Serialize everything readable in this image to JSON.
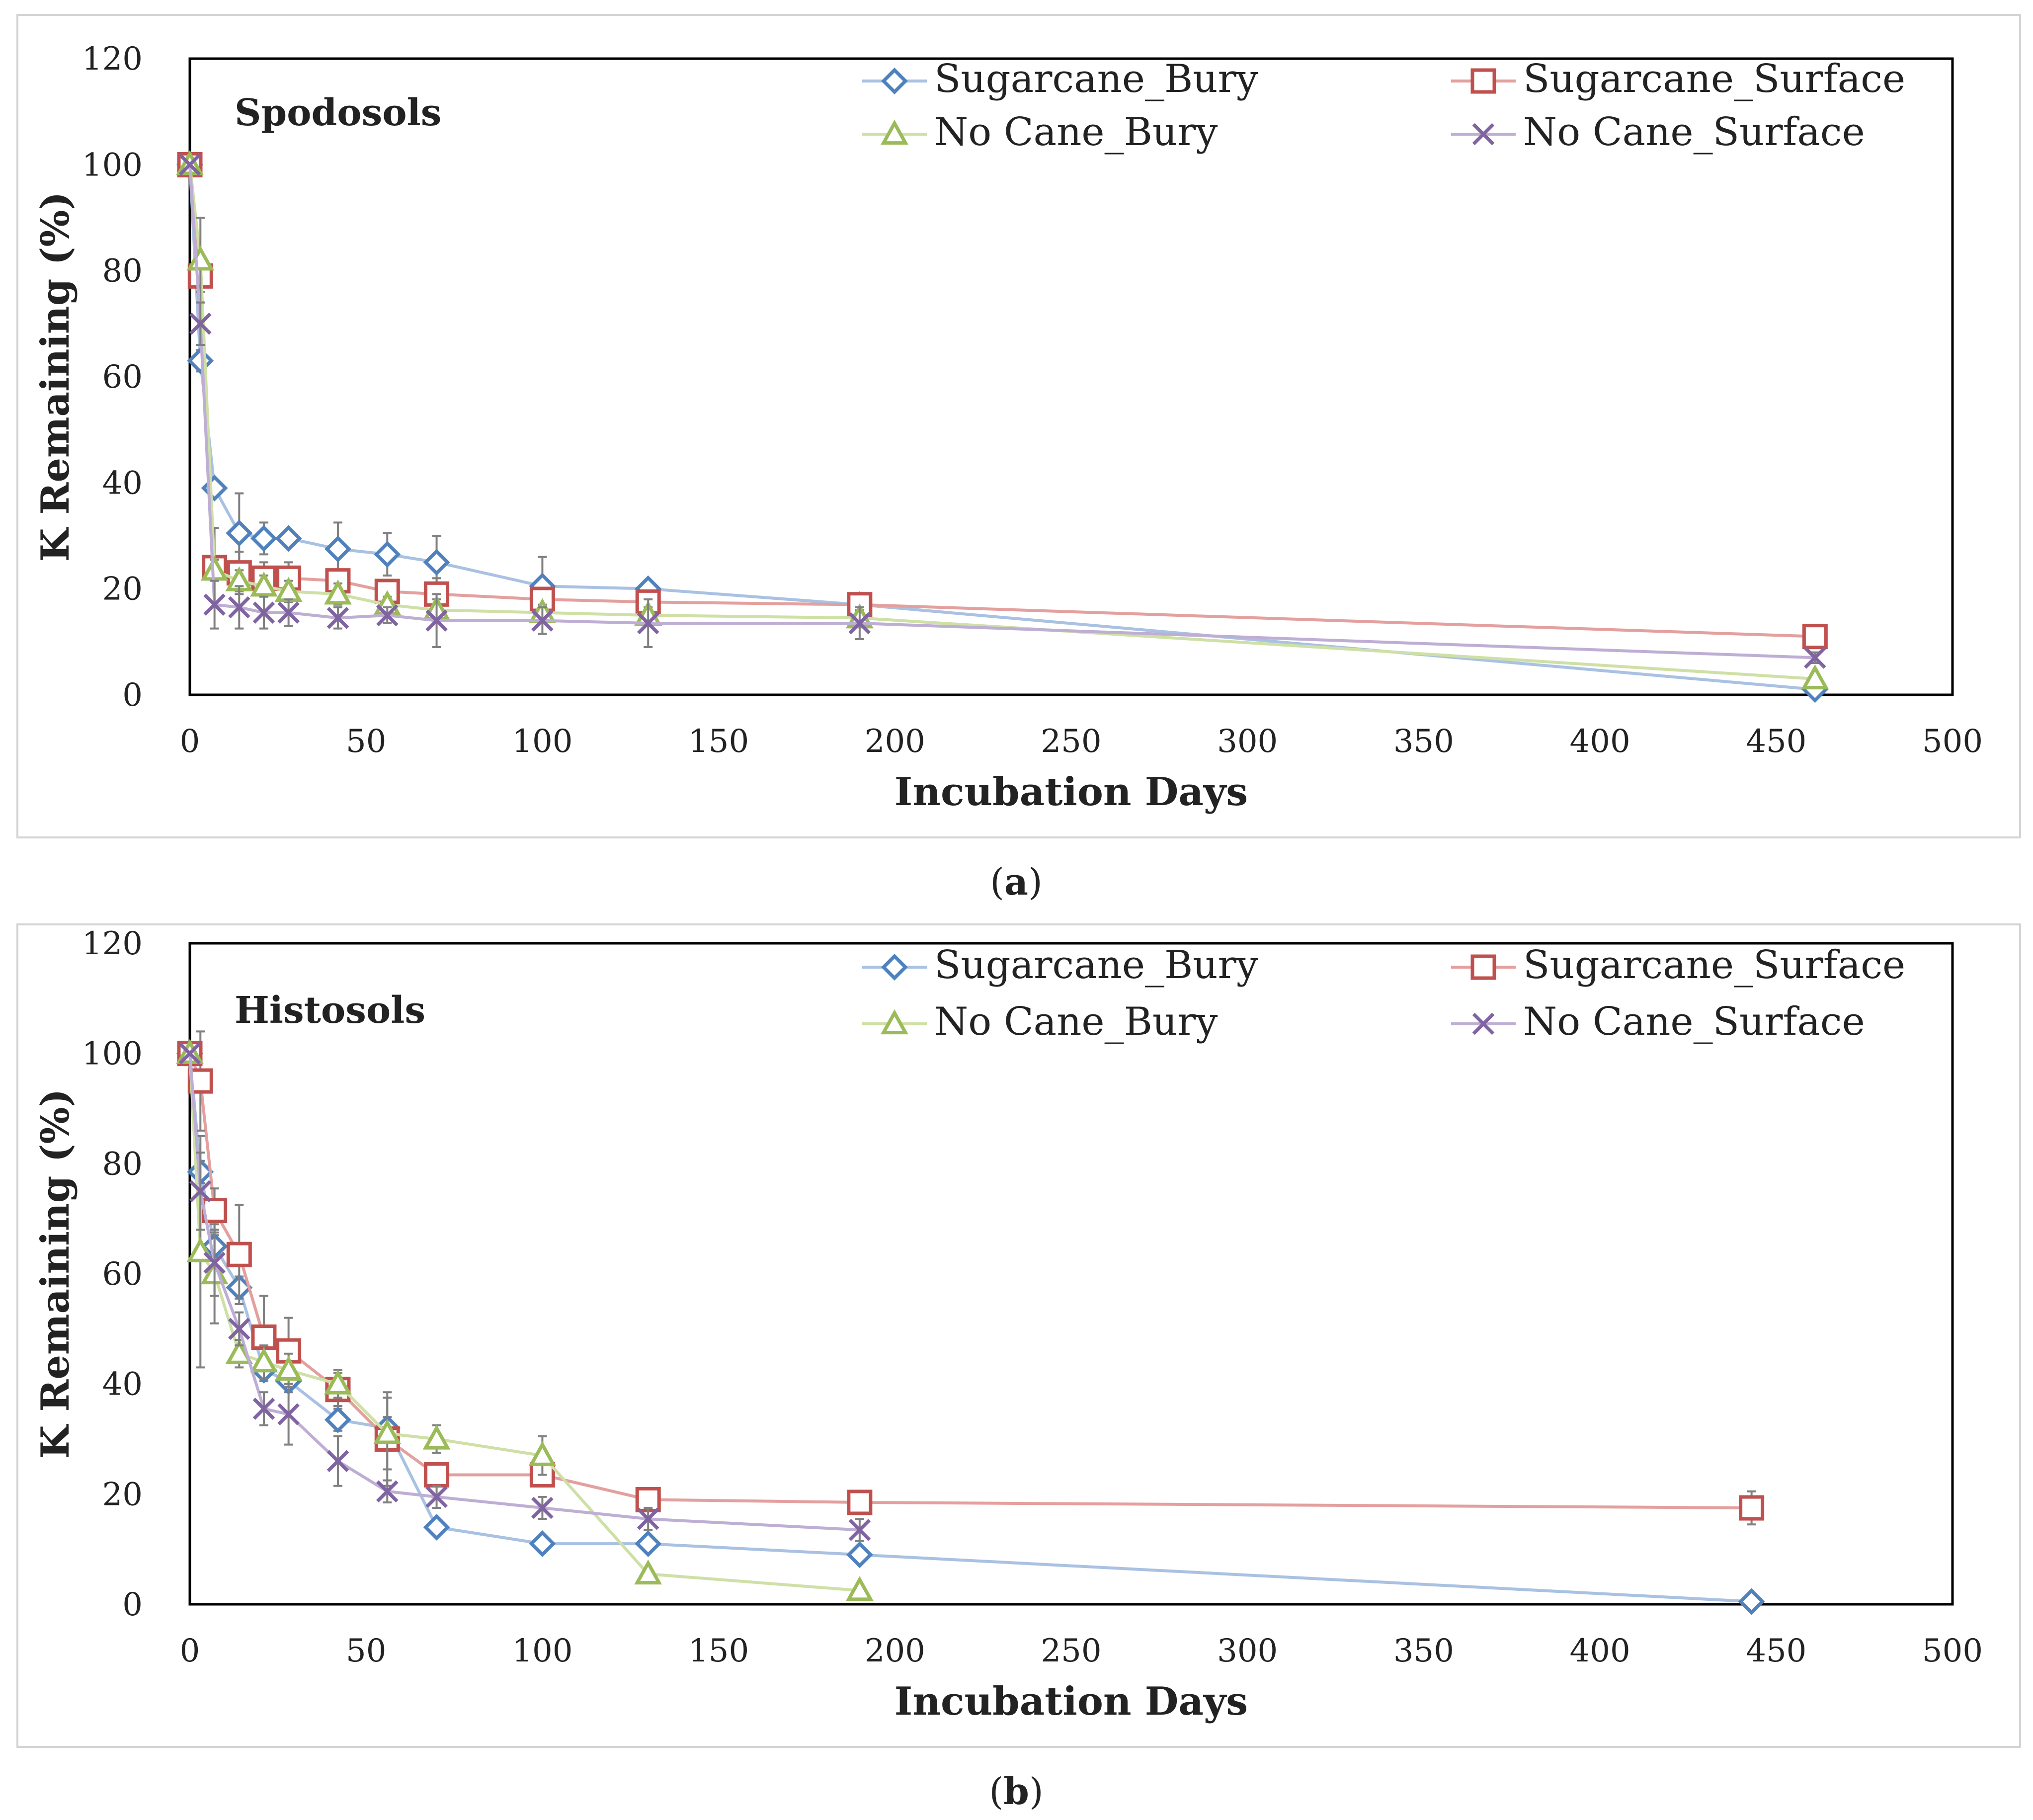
{
  "chart_data": [
    {
      "type": "line",
      "panel_label": "a",
      "title": "Spodosols",
      "xlabel": "Incubation Days",
      "ylabel": "K Remaining (%)",
      "xlim": [
        0,
        500
      ],
      "ylim": [
        0,
        120
      ],
      "xticks": [
        0,
        50,
        100,
        150,
        200,
        250,
        300,
        350,
        400,
        450,
        500
      ],
      "yticks": [
        0,
        20,
        40,
        60,
        80,
        100,
        120
      ],
      "grid": false,
      "legend_position": "top-right",
      "series": [
        {
          "name": "Sugarcane_Bury",
          "color": "#4f81bd",
          "line_color": "#a9c1e2",
          "marker": "diamond",
          "x": [
            0,
            3,
            7,
            14,
            21,
            28,
            42,
            56,
            70,
            100,
            130,
            190,
            461
          ],
          "y": [
            100,
            63,
            39,
            30.5,
            29.5,
            29.5,
            27.5,
            26.5,
            25,
            20.5,
            20,
            17,
            1
          ],
          "err": [
            0,
            2,
            0,
            7.5,
            3,
            0,
            5,
            4,
            5,
            5.5,
            0,
            0,
            0
          ]
        },
        {
          "name": "Sugarcane_Surface",
          "color": "#c0504d",
          "line_color": "#e3a09e",
          "marker": "square",
          "x": [
            0,
            3,
            7,
            14,
            21,
            28,
            42,
            56,
            70,
            100,
            130,
            190,
            461
          ],
          "y": [
            100,
            79,
            24,
            23,
            22,
            22,
            21.5,
            19.5,
            19,
            18,
            17.5,
            17,
            11
          ],
          "err": [
            0,
            3,
            7.5,
            4,
            3,
            3,
            2,
            1.5,
            3,
            1.5,
            1,
            0.5,
            0.5
          ]
        },
        {
          "name": "No Cane_Bury",
          "color": "#9bbb59",
          "line_color": "#cfe0a6",
          "marker": "triangle",
          "x": [
            0,
            3,
            7,
            14,
            21,
            28,
            42,
            56,
            70,
            100,
            130,
            190,
            461
          ],
          "y": [
            100,
            82,
            23.5,
            21.5,
            20.5,
            19.5,
            19,
            17,
            16,
            15.5,
            15,
            14.5,
            3
          ],
          "err": [
            0,
            8,
            2,
            2,
            2,
            2,
            2,
            1.5,
            2,
            1.5,
            1.5,
            1.5,
            0.5
          ]
        },
        {
          "name": "No Cane_Surface",
          "color": "#8064a2",
          "line_color": "#bfaed4",
          "marker": "x",
          "x": [
            0,
            3,
            7,
            14,
            21,
            28,
            42,
            56,
            70,
            100,
            130,
            190,
            461
          ],
          "y": [
            100,
            70,
            17,
            16.5,
            15.5,
            15.5,
            14.5,
            15,
            14,
            14,
            13.5,
            13.5,
            7
          ],
          "err": [
            0,
            4,
            4.5,
            4,
            3,
            2.5,
            2,
            1.5,
            5,
            2.5,
            4.5,
            3,
            1
          ]
        }
      ]
    },
    {
      "type": "line",
      "panel_label": "b",
      "title": "Histosols",
      "xlabel": "Incubation Days",
      "ylabel": "K Remaining (%)",
      "xlim": [
        0,
        500
      ],
      "ylim": [
        0,
        120
      ],
      "xticks": [
        0,
        50,
        100,
        150,
        200,
        250,
        300,
        350,
        400,
        450,
        500
      ],
      "yticks": [
        0,
        20,
        40,
        60,
        80,
        100,
        120
      ],
      "grid": false,
      "legend_position": "top-right",
      "series": [
        {
          "name": "Sugarcane_Bury",
          "color": "#4f81bd",
          "line_color": "#a9c1e2",
          "marker": "diamond",
          "x": [
            0,
            3,
            7,
            14,
            21,
            28,
            42,
            56,
            70,
            100,
            130,
            190,
            443
          ],
          "y": [
            100,
            78.5,
            65,
            57.5,
            42.5,
            40.5,
            33.5,
            32,
            14,
            11,
            11,
            9,
            0.5
          ],
          "err": [
            0,
            2,
            2,
            2,
            2,
            2,
            2,
            2,
            0.5,
            0.5,
            0.5,
            0.5,
            0
          ]
        },
        {
          "name": "Sugarcane_Surface",
          "color": "#c0504d",
          "line_color": "#e3a09e",
          "marker": "square",
          "x": [
            0,
            3,
            7,
            14,
            21,
            28,
            42,
            56,
            70,
            100,
            130,
            190,
            443
          ],
          "y": [
            100,
            95,
            71.5,
            63.5,
            48.5,
            46,
            39,
            30,
            23.5,
            23.5,
            19,
            18.5,
            17.5
          ],
          "err": [
            0,
            9,
            4,
            9,
            7.5,
            6,
            3,
            8.5,
            2,
            2,
            2,
            2,
            3
          ]
        },
        {
          "name": "No Cane_Bury",
          "color": "#9bbb59",
          "line_color": "#cfe0a6",
          "marker": "triangle",
          "x": [
            0,
            3,
            7,
            14,
            21,
            28,
            42,
            56,
            70,
            100,
            130,
            190
          ],
          "y": [
            100,
            64,
            60,
            45.5,
            44,
            42.5,
            40,
            31,
            30,
            27,
            5.5,
            2.5
          ],
          "err": [
            0,
            21,
            9,
            2.5,
            3,
            3,
            2.5,
            6.5,
            2.5,
            3.5,
            1,
            0.5
          ]
        },
        {
          "name": "No Cane_Surface",
          "color": "#8064a2",
          "line_color": "#bfaed4",
          "marker": "x",
          "x": [
            0,
            3,
            7,
            14,
            21,
            28,
            42,
            56,
            70,
            100,
            130,
            190
          ],
          "y": [
            100,
            75,
            62,
            50,
            35.5,
            34.5,
            26,
            20.5,
            19.5,
            17.5,
            15.5,
            13.5
          ],
          "err": [
            0,
            7,
            6,
            3,
            3,
            5.5,
            4.5,
            2,
            2,
            2,
            2,
            2
          ]
        }
      ]
    }
  ]
}
